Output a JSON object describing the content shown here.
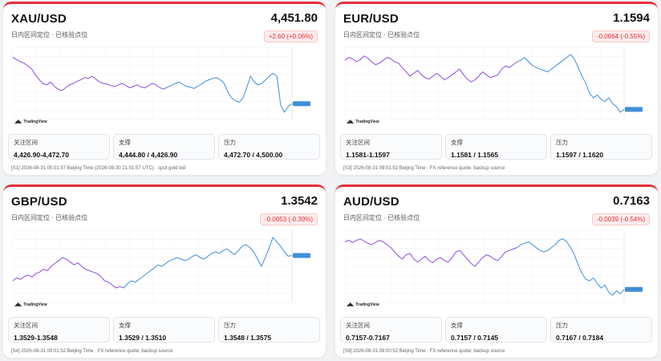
{
  "cards": [
    {
      "symbol": "XAU/USD",
      "price": "4,451.80",
      "subtitle": "日内区间定位 · 已核验点位",
      "change": "+2.60 (+0.06%)",
      "zones": [
        {
          "label": "关注区间",
          "value": "4,426.90-4,472.70"
        },
        {
          "label": "支撑",
          "value": "4,444.80 / 4,426.90"
        },
        {
          "label": "压力",
          "value": "4,472.70 / 4,500.00"
        }
      ],
      "footer": "[S1] 2026-08-31 05:01:57 Beijing Time (2026-08-30 21:01:57 UTC) · spot gold bid",
      "watermark": "TradingView",
      "chart_data": {
        "type": "line",
        "y_rel": [
          0.86,
          0.83,
          0.8,
          0.78,
          0.74,
          0.7,
          0.62,
          0.55,
          0.5,
          0.48,
          0.52,
          0.46,
          0.42,
          0.4,
          0.44,
          0.48,
          0.5,
          0.53,
          0.55,
          0.58,
          0.57,
          0.6,
          0.56,
          0.52,
          0.5,
          0.49,
          0.47,
          0.46,
          0.48,
          0.5,
          0.47,
          0.44,
          0.46,
          0.48,
          0.45,
          0.44,
          0.47,
          0.5,
          0.48,
          0.44,
          0.42,
          0.45,
          0.47,
          0.5,
          0.52,
          0.49,
          0.46,
          0.45,
          0.43,
          0.46,
          0.49,
          0.53,
          0.55,
          0.57,
          0.58,
          0.55,
          0.5,
          0.38,
          0.3,
          0.26,
          0.24,
          0.3,
          0.44,
          0.6,
          0.52,
          0.48,
          0.5,
          0.55,
          0.6,
          0.64,
          0.6,
          0.2,
          0.1,
          0.18,
          0.22
        ],
        "split": 0.55
      }
    },
    {
      "symbol": "EUR/USD",
      "price": "1.1594",
      "subtitle": "日内区间定位 · 已核验点位",
      "change": "-0.0064 (-0.55%)",
      "zones": [
        {
          "label": "关注区间",
          "value": "1.1581-1.1597"
        },
        {
          "label": "支撑",
          "value": "1.1581 / 1.1565"
        },
        {
          "label": "压力",
          "value": "1.1597 / 1.1620"
        }
      ],
      "footer": "[S3] 2026-08-31 09:01:52 Beijing Time · FX reference quote; backup source",
      "watermark": "TradingView",
      "chart_data": {
        "type": "line",
        "y_rel": [
          0.82,
          0.86,
          0.84,
          0.8,
          0.83,
          0.88,
          0.85,
          0.8,
          0.76,
          0.78,
          0.82,
          0.86,
          0.84,
          0.8,
          0.78,
          0.72,
          0.66,
          0.6,
          0.64,
          0.68,
          0.62,
          0.58,
          0.56,
          0.6,
          0.64,
          0.6,
          0.55,
          0.58,
          0.62,
          0.66,
          0.7,
          0.62,
          0.56,
          0.52,
          0.55,
          0.6,
          0.66,
          0.62,
          0.58,
          0.6,
          0.62,
          0.7,
          0.74,
          0.72,
          0.76,
          0.8,
          0.82,
          0.86,
          0.8,
          0.75,
          0.72,
          0.7,
          0.68,
          0.66,
          0.7,
          0.74,
          0.78,
          0.82,
          0.86,
          0.9,
          0.84,
          0.72,
          0.6,
          0.5,
          0.36,
          0.3,
          0.34,
          0.28,
          0.25,
          0.3,
          0.22,
          0.18,
          0.1,
          0.14
        ],
        "split": 0.62
      }
    },
    {
      "symbol": "GBP/USD",
      "price": "1.3542",
      "subtitle": "日内区间定位 · 已核验点位",
      "change": "-0.0053 (-0.39%)",
      "zones": [
        {
          "label": "关注区间",
          "value": "1.3529-1.3548"
        },
        {
          "label": "支撑",
          "value": "1.3529 / 1.3510"
        },
        {
          "label": "压力",
          "value": "1.3548 / 1.3575"
        }
      ],
      "footer": "[S4] 2026-08-31 09:01:52 Beijing Time · FX reference quote; backup source",
      "watermark": "TradingView",
      "chart_data": {
        "type": "line",
        "y_rel": [
          0.3,
          0.34,
          0.32,
          0.36,
          0.38,
          0.35,
          0.4,
          0.42,
          0.46,
          0.44,
          0.5,
          0.54,
          0.58,
          0.62,
          0.6,
          0.56,
          0.52,
          0.55,
          0.5,
          0.46,
          0.44,
          0.42,
          0.4,
          0.36,
          0.3,
          0.28,
          0.24,
          0.2,
          0.22,
          0.2,
          0.26,
          0.3,
          0.28,
          0.32,
          0.36,
          0.4,
          0.44,
          0.48,
          0.52,
          0.5,
          0.54,
          0.58,
          0.6,
          0.62,
          0.6,
          0.58,
          0.6,
          0.64,
          0.66,
          0.62,
          0.6,
          0.64,
          0.68,
          0.7,
          0.68,
          0.72,
          0.74,
          0.7,
          0.66,
          0.72,
          0.78,
          0.8,
          0.76,
          0.7,
          0.6,
          0.5,
          0.62,
          0.75,
          0.9,
          0.84,
          0.78,
          0.7,
          0.64,
          0.65
        ],
        "split": 0.4
      }
    },
    {
      "symbol": "AUD/USD",
      "price": "0.7163",
      "subtitle": "日内区间定位 · 已核验点位",
      "change": "-0.0039 (-0.54%)",
      "zones": [
        {
          "label": "关注区间",
          "value": "0.7157-0.7167"
        },
        {
          "label": "支撑",
          "value": "0.7157 / 0.7145"
        },
        {
          "label": "压力",
          "value": "0.7167 / 0.7184"
        }
      ],
      "footer": "[S9] 2026-08-31 09:00:52 Beijing Time · FX reference quote; backup source",
      "watermark": "TradingView",
      "chart_data": {
        "type": "line",
        "y_rel": [
          0.84,
          0.86,
          0.83,
          0.86,
          0.88,
          0.85,
          0.82,
          0.8,
          0.83,
          0.86,
          0.84,
          0.8,
          0.76,
          0.7,
          0.64,
          0.6,
          0.66,
          0.68,
          0.6,
          0.56,
          0.6,
          0.64,
          0.58,
          0.55,
          0.6,
          0.62,
          0.58,
          0.56,
          0.62,
          0.7,
          0.72,
          0.66,
          0.6,
          0.54,
          0.5,
          0.56,
          0.62,
          0.66,
          0.64,
          0.6,
          0.58,
          0.64,
          0.7,
          0.72,
          0.74,
          0.76,
          0.8,
          0.82,
          0.84,
          0.8,
          0.76,
          0.72,
          0.7,
          0.72,
          0.76,
          0.8,
          0.86,
          0.88,
          0.84,
          0.76,
          0.66,
          0.52,
          0.4,
          0.32,
          0.3,
          0.34,
          0.26,
          0.2,
          0.24,
          0.14,
          0.1,
          0.16,
          0.12,
          0.18
        ],
        "split": 0.62
      }
    }
  ]
}
